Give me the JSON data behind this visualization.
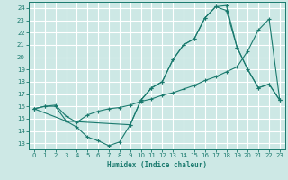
{
  "xlabel": "Humidex (Indice chaleur)",
  "xlim": [
    -0.5,
    23.5
  ],
  "ylim": [
    12.5,
    24.5
  ],
  "xticks": [
    0,
    1,
    2,
    3,
    4,
    5,
    6,
    7,
    8,
    9,
    10,
    11,
    12,
    13,
    14,
    15,
    16,
    17,
    18,
    19,
    20,
    21,
    22,
    23
  ],
  "yticks": [
    13,
    14,
    15,
    16,
    17,
    18,
    19,
    20,
    21,
    22,
    23,
    24
  ],
  "bg_color": "#cde8e5",
  "grid_color": "#ffffff",
  "line_color": "#1a7a6e",
  "line1_x": [
    0,
    1,
    2,
    3,
    4,
    5,
    6,
    7,
    8,
    9,
    10,
    11,
    12,
    13,
    14,
    15,
    16,
    17,
    18,
    19,
    20,
    21,
    22,
    23
  ],
  "line1_y": [
    15.8,
    16.0,
    16.0,
    14.8,
    14.3,
    13.5,
    13.2,
    12.8,
    13.1,
    14.5,
    16.5,
    17.5,
    18.0,
    19.8,
    21.0,
    21.5,
    23.2,
    24.1,
    24.2,
    20.8,
    19.0,
    17.5,
    17.8,
    16.5
  ],
  "line2_x": [
    0,
    1,
    2,
    3,
    4,
    5,
    6,
    7,
    8,
    9,
    10,
    11,
    12,
    13,
    14,
    15,
    16,
    17,
    18,
    19,
    20,
    21,
    22,
    23
  ],
  "line2_y": [
    15.8,
    16.0,
    16.1,
    15.2,
    14.7,
    15.3,
    15.6,
    15.8,
    15.9,
    16.1,
    16.4,
    16.6,
    16.9,
    17.1,
    17.4,
    17.7,
    18.1,
    18.4,
    18.8,
    19.2,
    20.5,
    22.2,
    23.1,
    16.5
  ],
  "line3_x": [
    0,
    3,
    9,
    10,
    11,
    12,
    13,
    14,
    15,
    16,
    17,
    18,
    19,
    20,
    21,
    22,
    23
  ],
  "line3_y": [
    15.8,
    14.8,
    14.5,
    16.5,
    17.5,
    18.0,
    19.8,
    21.0,
    21.5,
    23.2,
    24.1,
    23.8,
    20.8,
    19.0,
    17.5,
    17.8,
    16.5
  ]
}
